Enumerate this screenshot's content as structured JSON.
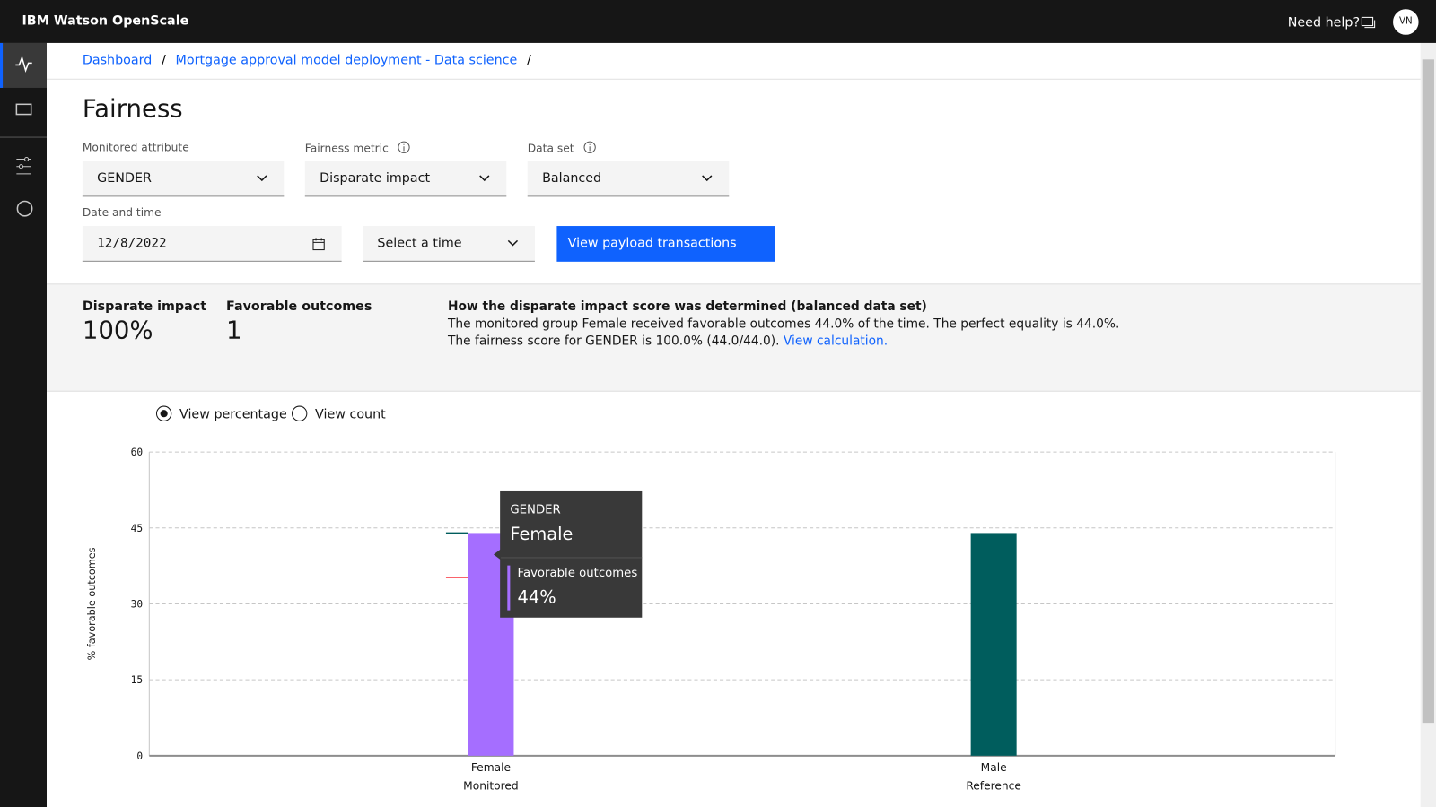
{
  "header": {
    "product": "IBM Watson OpenScale",
    "help": "Need help?",
    "avatar": "VN"
  },
  "breadcrumbs": [
    "Dashboard",
    "Mortgage approval model deployment - Data science"
  ],
  "breadcrumb_separator": "/",
  "page_title": "Fairness",
  "filters": {
    "monitored_attribute": {
      "label": "Monitored attribute",
      "value": "GENDER"
    },
    "fairness_metric": {
      "label": "Fairness metric",
      "value": "Disparate impact"
    },
    "data_set": {
      "label": "Data set",
      "value": "Balanced"
    },
    "date_time": {
      "label": "Date and time",
      "date": "12/8/2022",
      "time_placeholder": "Select a time"
    },
    "action": "View payload transactions"
  },
  "summary": {
    "metrics": [
      {
        "label": "Disparate impact",
        "value": "100%"
      },
      {
        "label": "Favorable outcomes",
        "value": "1"
      }
    ],
    "explanation": {
      "title": "How the disparate impact score was determined (balanced data set)",
      "lines": [
        "The monitored group Female received favorable outcomes 44.0% of the time. The perfect equality is 44.0%.",
        "The fairness score for GENDER is 100.0% (44.0/44.0)."
      ],
      "link": "View calculation."
    }
  },
  "view_options": [
    "View percentage",
    "View count"
  ],
  "selected_view": 0,
  "chart_data": {
    "type": "bar",
    "y_label": "% favorable outcomes",
    "categories": [
      "Female",
      "Male"
    ],
    "groups": [
      "Monitored",
      "Reference"
    ],
    "values": [
      44,
      44
    ],
    "colors": [
      "#a56eff",
      "#005d5d"
    ],
    "ylim": [
      0,
      60
    ],
    "yticks": [
      0,
      15,
      30,
      45,
      60
    ],
    "grid": true,
    "reference_marks": [
      {
        "value": 44,
        "color": "#005d5d"
      },
      {
        "value": 35.2,
        "color": "#fa4d56"
      }
    ],
    "tooltip": {
      "title": "GENDER",
      "category": "Female",
      "label": "Favorable outcomes",
      "value": "44%"
    }
  }
}
